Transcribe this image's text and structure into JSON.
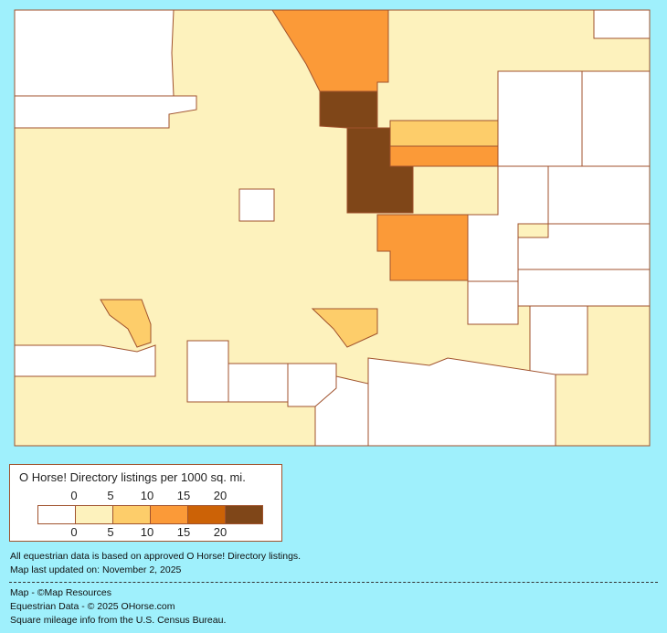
{
  "legend": {
    "title": "O Horse! Directory listings per 1000 sq. mi.",
    "ticks_top": [
      "0",
      "5",
      "10",
      "15",
      "20"
    ],
    "ticks_bottom": [
      "0",
      "5",
      "10",
      "15",
      "20"
    ],
    "bins": [
      {
        "range": "0",
        "color": "#ffffff"
      },
      {
        "range": "0-5",
        "color": "#fdf2bd"
      },
      {
        "range": "5-10",
        "color": "#fdcd6a"
      },
      {
        "range": "10-15",
        "color": "#fb9a38"
      },
      {
        "range": "15-20",
        "color": "#cc6206"
      },
      {
        "range": "20+",
        "color": "#7f4618"
      }
    ]
  },
  "notes": {
    "data_basis": "All equestrian data is based on approved O Horse! Directory listings.",
    "updated": "Map last updated on: November 2, 2025",
    "credit_map": "Map - ©Map Resources",
    "credit_data": "Equestrian Data - © 2025 OHorse.com",
    "credit_census": "Square mileage info from the U.S. Census Bureau."
  },
  "map": {
    "border_color": "#a0522d",
    "background": "#9ff0fc"
  }
}
